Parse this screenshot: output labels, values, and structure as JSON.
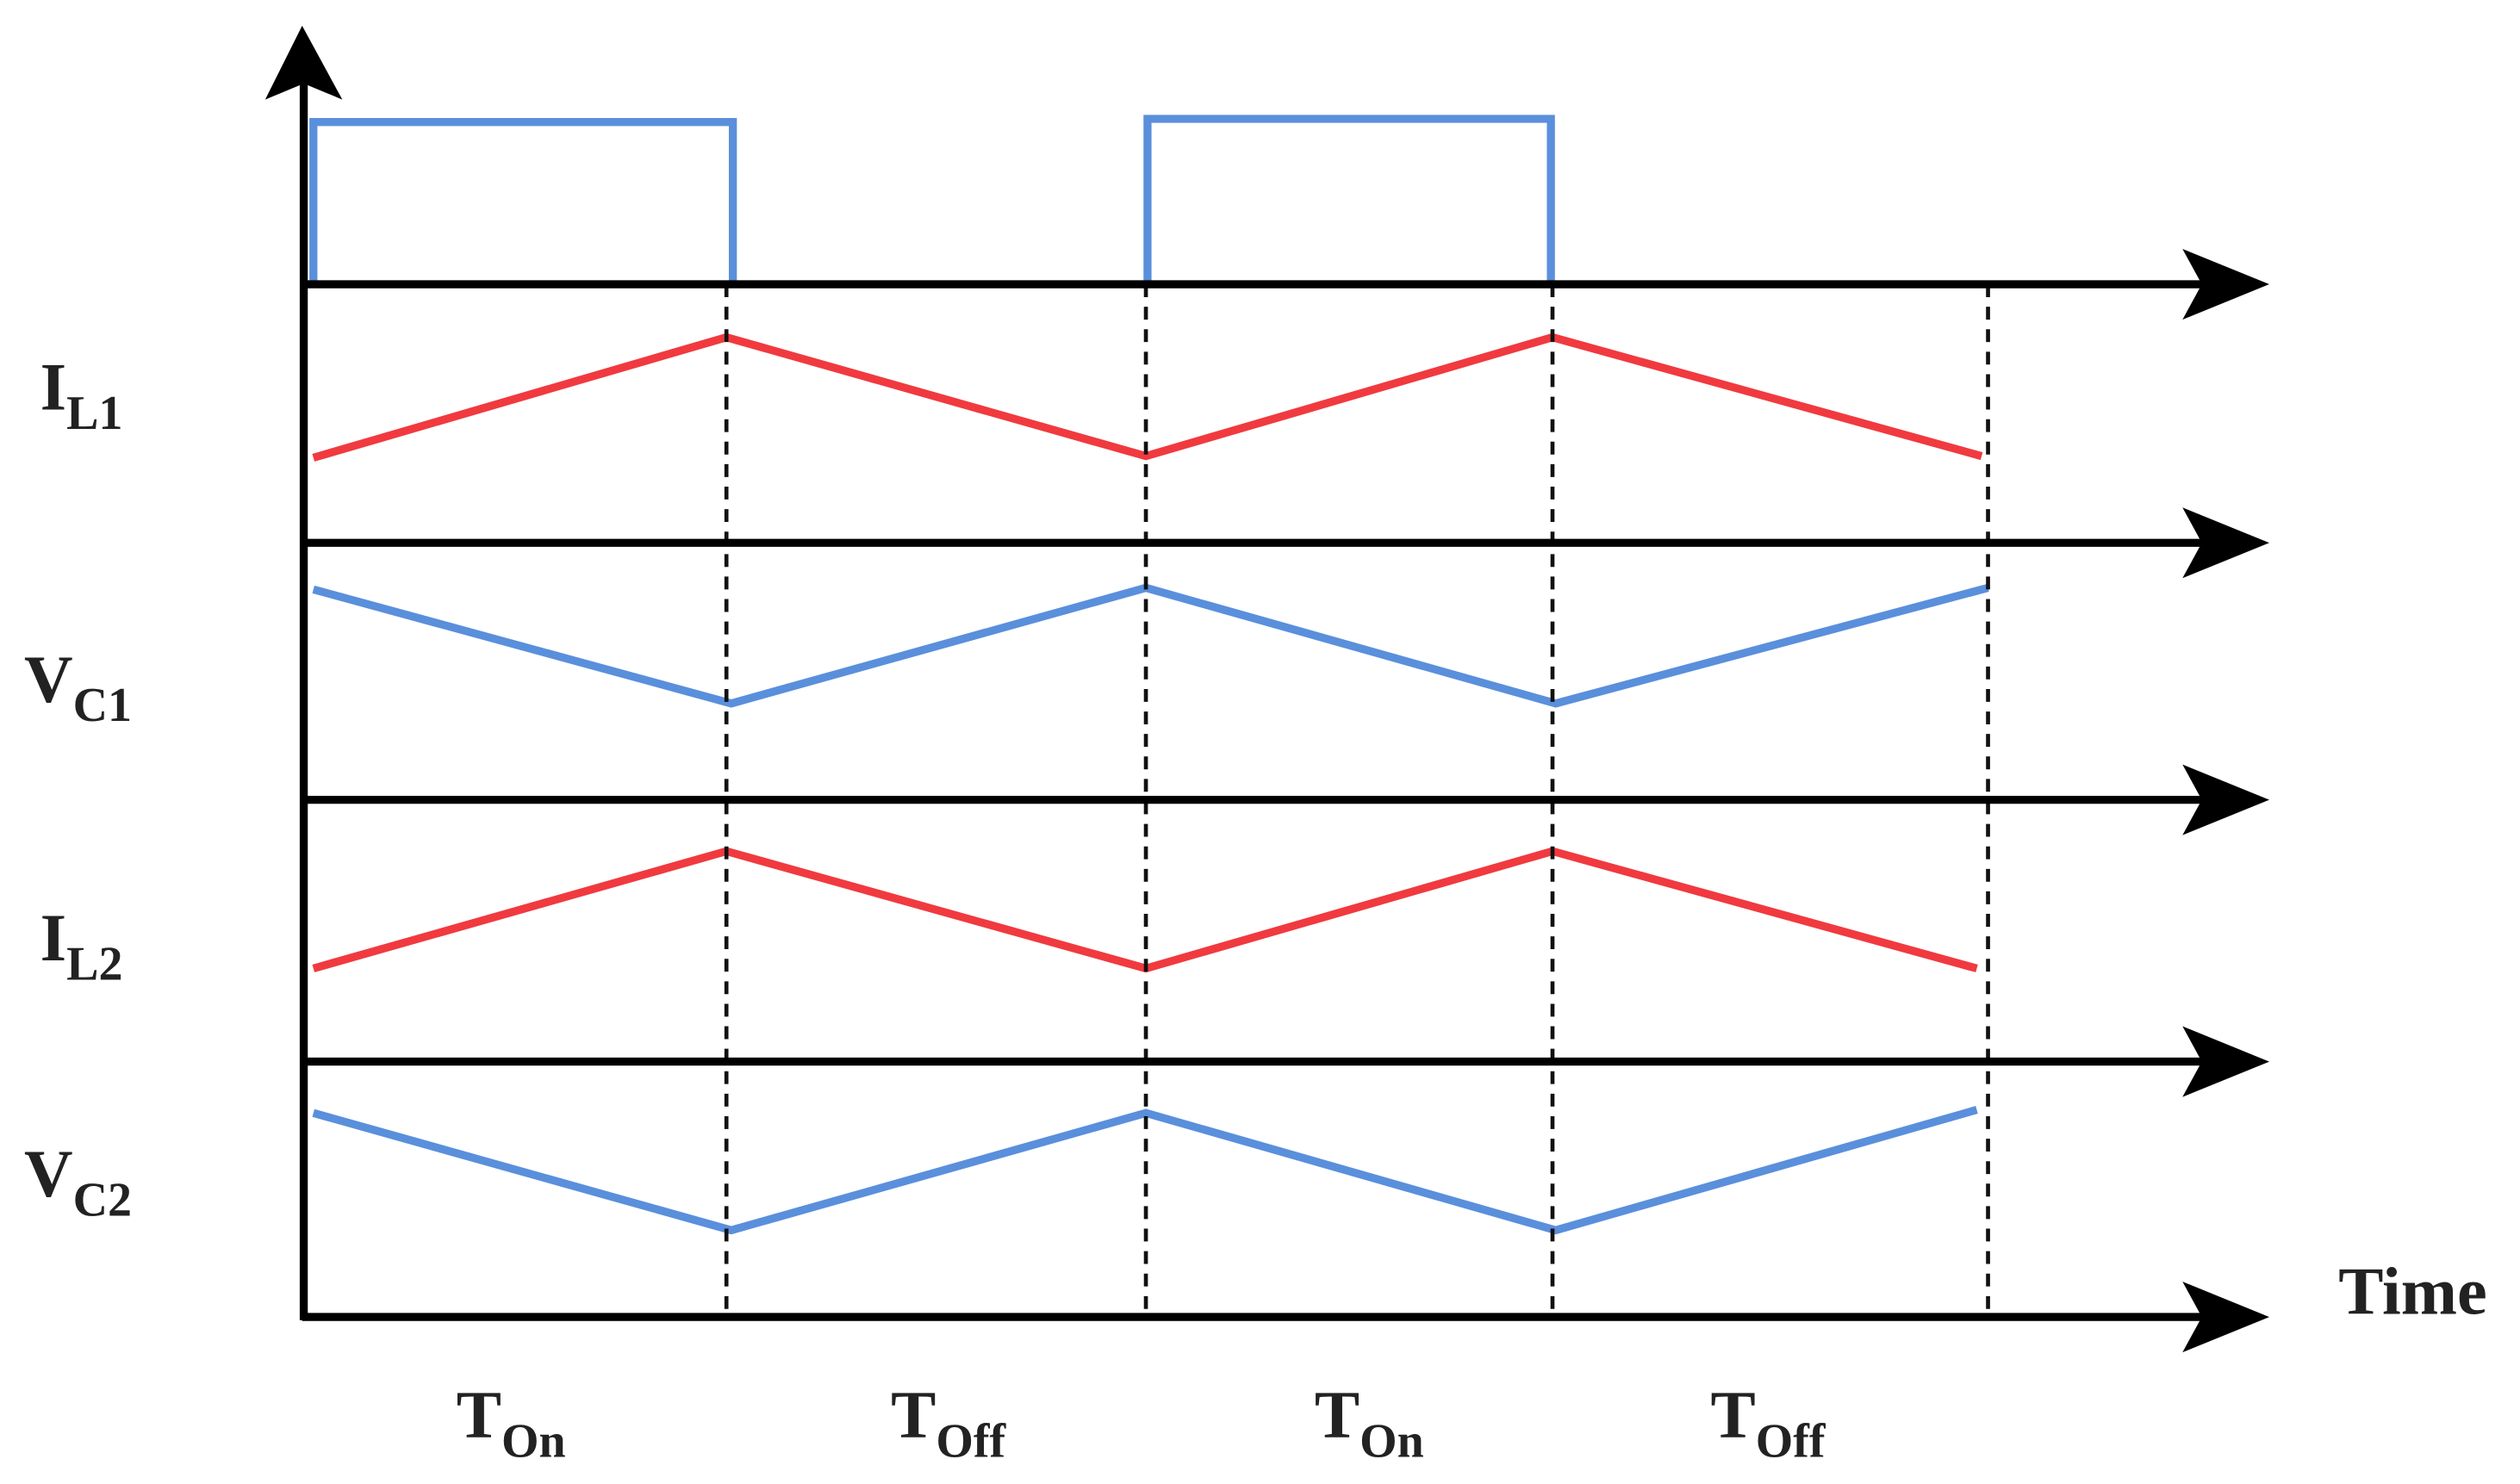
{
  "signals": [
    {
      "main": "I",
      "sub": "L1"
    },
    {
      "main": "V",
      "sub": "C1"
    },
    {
      "main": "I",
      "sub": "L2"
    },
    {
      "main": "V",
      "sub": "C2"
    }
  ],
  "time_label": "Time",
  "intervals": [
    {
      "main": "T",
      "sub": "On"
    },
    {
      "main": "T",
      "sub": "Off"
    },
    {
      "main": "T",
      "sub": "On"
    },
    {
      "main": "T",
      "sub": "Off"
    }
  ]
}
